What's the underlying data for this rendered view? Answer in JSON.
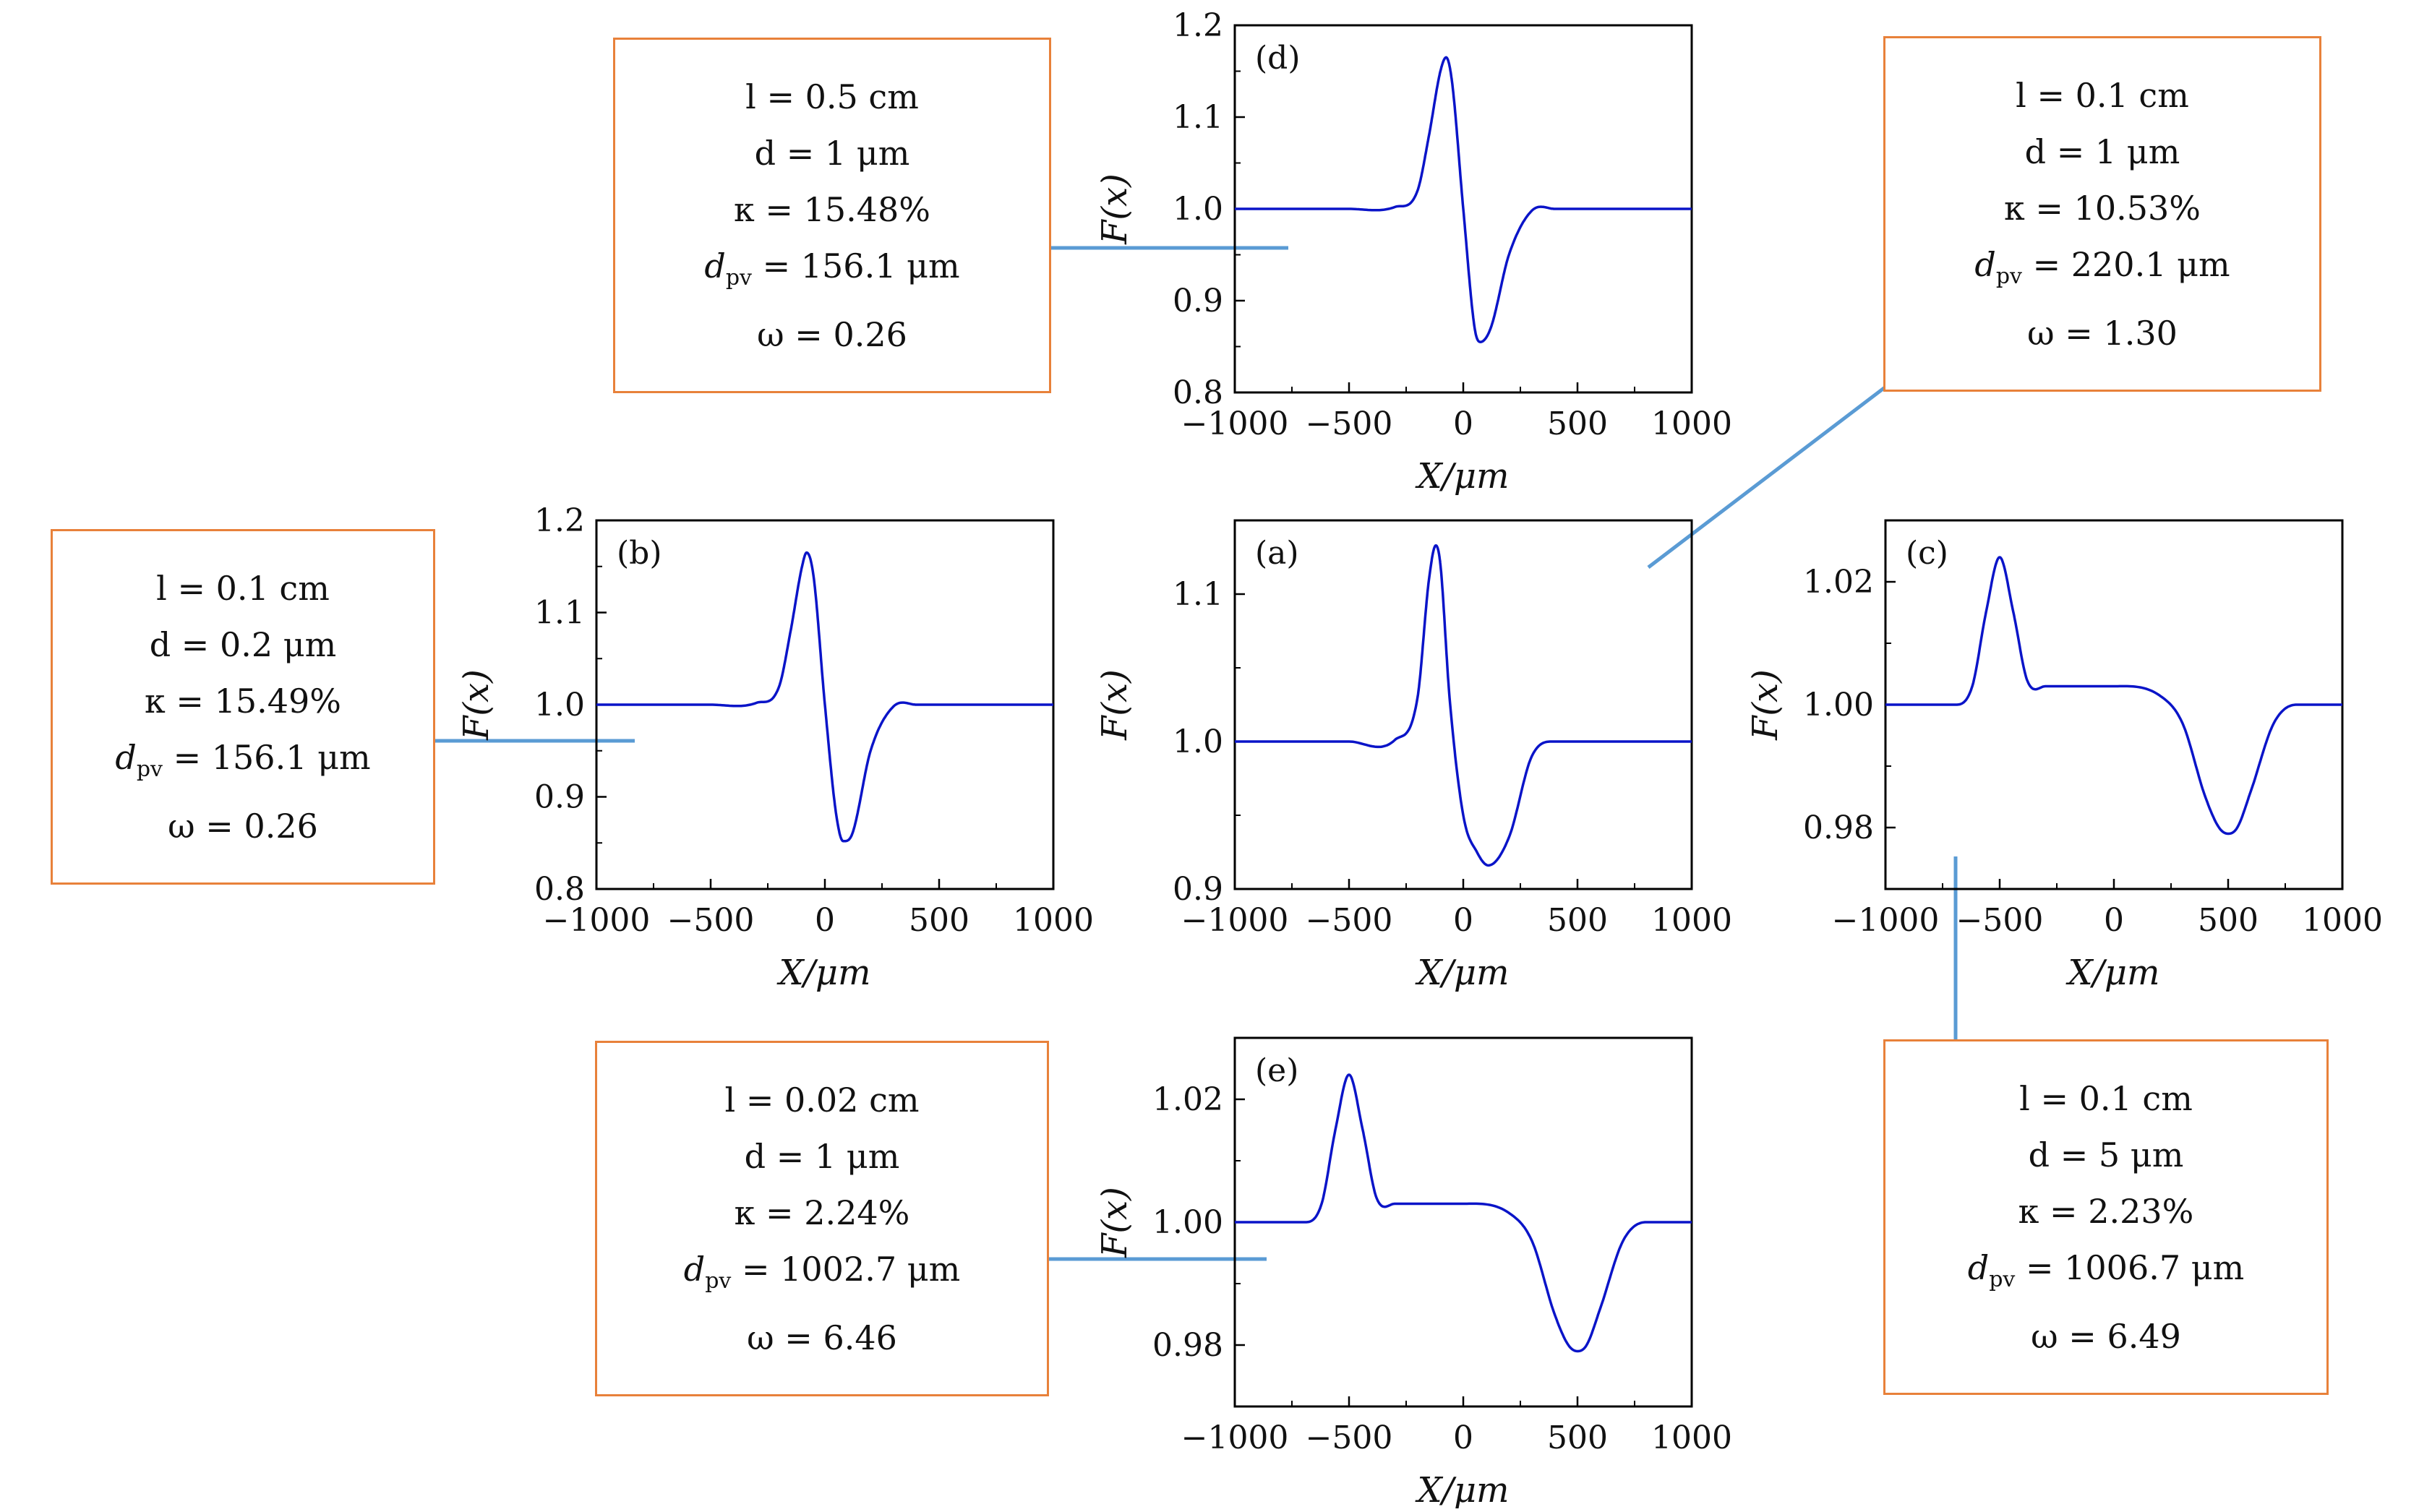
{
  "chart_data": [
    {
      "type": "line",
      "panel": "(a)",
      "xlabel": "X/μm",
      "ylabel": "F(x)",
      "xlim": [
        -1000,
        1000
      ],
      "ylim": [
        0.9,
        1.15
      ],
      "xticks": [
        "−1000",
        "−500",
        "0",
        "500",
        "1000"
      ],
      "yticks": [
        "0.9",
        "1.0",
        "1.1"
      ],
      "series": [
        {
          "x": [
            -1000,
            -500,
            -300,
            -200,
            -150,
            -120,
            -100,
            -60,
            0,
            60,
            110,
            200,
            300,
            400,
            500,
            1000
          ],
          "y": [
            1.0,
            1.0,
            1.001,
            1.03,
            1.11,
            1.133,
            1.12,
            1.03,
            0.95,
            0.925,
            0.916,
            0.935,
            0.99,
            1.0,
            1.0,
            1.0
          ]
        }
      ],
      "color": "#0a14c8"
    },
    {
      "type": "line",
      "panel": "(b)",
      "xlabel": "X/μm",
      "ylabel": "F(x)",
      "xlim": [
        -1000,
        1000
      ],
      "ylim": [
        0.8,
        1.2
      ],
      "xticks": [
        "−1000",
        "−500",
        "0",
        "500",
        "1000"
      ],
      "yticks": [
        "0.8",
        "0.9",
        "1.0",
        "1.1",
        "1.2"
      ],
      "series": [
        {
          "x": [
            -1000,
            -500,
            -300,
            -200,
            -150,
            -100,
            -80,
            -50,
            0,
            50,
            80,
            120,
            200,
            300,
            400,
            1000
          ],
          "y": [
            1.0,
            1.0,
            1.002,
            1.02,
            1.08,
            1.15,
            1.165,
            1.14,
            1.0,
            0.88,
            0.852,
            0.86,
            0.95,
            0.998,
            1.0,
            1.0
          ]
        }
      ],
      "color": "#0a14c8"
    },
    {
      "type": "line",
      "panel": "(c)",
      "xlabel": "X/μm",
      "ylabel": "F(x)",
      "xlim": [
        -1000,
        1000
      ],
      "ylim": [
        0.97,
        1.03
      ],
      "xticks": [
        "−1000",
        "−500",
        "0",
        "500",
        "1000"
      ],
      "yticks": [
        "0.98",
        "1.00",
        "1.02"
      ],
      "series": [
        {
          "x": [
            -1000,
            -700,
            -620,
            -560,
            -500,
            -440,
            -380,
            -300,
            0,
            200,
            300,
            400,
            460,
            500,
            540,
            600,
            700,
            800,
            1000
          ],
          "y": [
            1.0,
            1.0,
            1.003,
            1.015,
            1.024,
            1.015,
            1.004,
            1.003,
            1.003,
            1.0015,
            0.997,
            0.985,
            0.98,
            0.979,
            0.98,
            0.986,
            0.997,
            1.0,
            1.0
          ]
        }
      ],
      "color": "#0a14c8"
    },
    {
      "type": "line",
      "panel": "(d)",
      "xlabel": "X/μm",
      "ylabel": "F(x)",
      "xlim": [
        -1000,
        1000
      ],
      "ylim": [
        0.8,
        1.2
      ],
      "xticks": [
        "−1000",
        "−500",
        "0",
        "500",
        "1000"
      ],
      "yticks": [
        "0.8",
        "0.9",
        "1.0",
        "1.1",
        "1.2"
      ],
      "series": [
        {
          "x": [
            -1000,
            -500,
            -300,
            -200,
            -150,
            -100,
            -75,
            -50,
            0,
            50,
            75,
            120,
            200,
            300,
            400,
            1000
          ],
          "y": [
            1.0,
            1.0,
            1.002,
            1.02,
            1.08,
            1.15,
            1.165,
            1.14,
            1.0,
            0.87,
            0.855,
            0.87,
            0.95,
            0.998,
            1.0,
            1.0
          ]
        }
      ],
      "color": "#0a14c8"
    },
    {
      "type": "line",
      "panel": "(e)",
      "xlabel": "X/μm",
      "ylabel": "F(x)",
      "xlim": [
        -1000,
        1000
      ],
      "ylim": [
        0.97,
        1.03
      ],
      "xticks": [
        "−1000",
        "−500",
        "0",
        "500",
        "1000"
      ],
      "yticks": [
        "0.98",
        "1.00",
        "1.02"
      ],
      "series": [
        {
          "x": [
            -1000,
            -700,
            -620,
            -560,
            -500,
            -440,
            -380,
            -300,
            0,
            200,
            300,
            400,
            460,
            500,
            540,
            600,
            700,
            800,
            1000
          ],
          "y": [
            1.0,
            1.0,
            1.003,
            1.015,
            1.024,
            1.015,
            1.004,
            1.003,
            1.003,
            1.0015,
            0.997,
            0.985,
            0.98,
            0.979,
            0.98,
            0.986,
            0.997,
            1.0,
            1.0
          ]
        }
      ],
      "color": "#0a14c8"
    }
  ],
  "info_boxes": {
    "d": {
      "l": "l = 0.5 cm",
      "d": "d = 1 μm",
      "kappa": "κ = 15.48%",
      "dpv": "= 156.1 μm",
      "omega": "ω = 0.26"
    },
    "a": {
      "l": "l = 0.1 cm",
      "d": "d = 1 μm",
      "kappa": "κ = 10.53%",
      "dpv": "= 220.1 μm",
      "omega": "ω = 1.30"
    },
    "b": {
      "l": "l = 0.1 cm",
      "d": "d = 0.2 μm",
      "kappa": "κ = 15.49%",
      "dpv": "= 156.1 μm",
      "omega": "ω = 0.26"
    },
    "c": {
      "l": "l = 0.1 cm",
      "d": "d = 5 μm",
      "kappa": "κ = 2.23%",
      "dpv": "= 1006.7 μm",
      "omega": "ω = 6.49"
    },
    "e": {
      "l": "l = 0.02 cm",
      "d": "d = 1 μm",
      "kappa": "κ = 2.24%",
      "dpv": "= 1002.7 μm",
      "omega": "ω = 6.46"
    }
  },
  "colors": {
    "curve": "#0a14c8",
    "arrow": "#5a9bd4",
    "box_border": "#e8813a"
  }
}
